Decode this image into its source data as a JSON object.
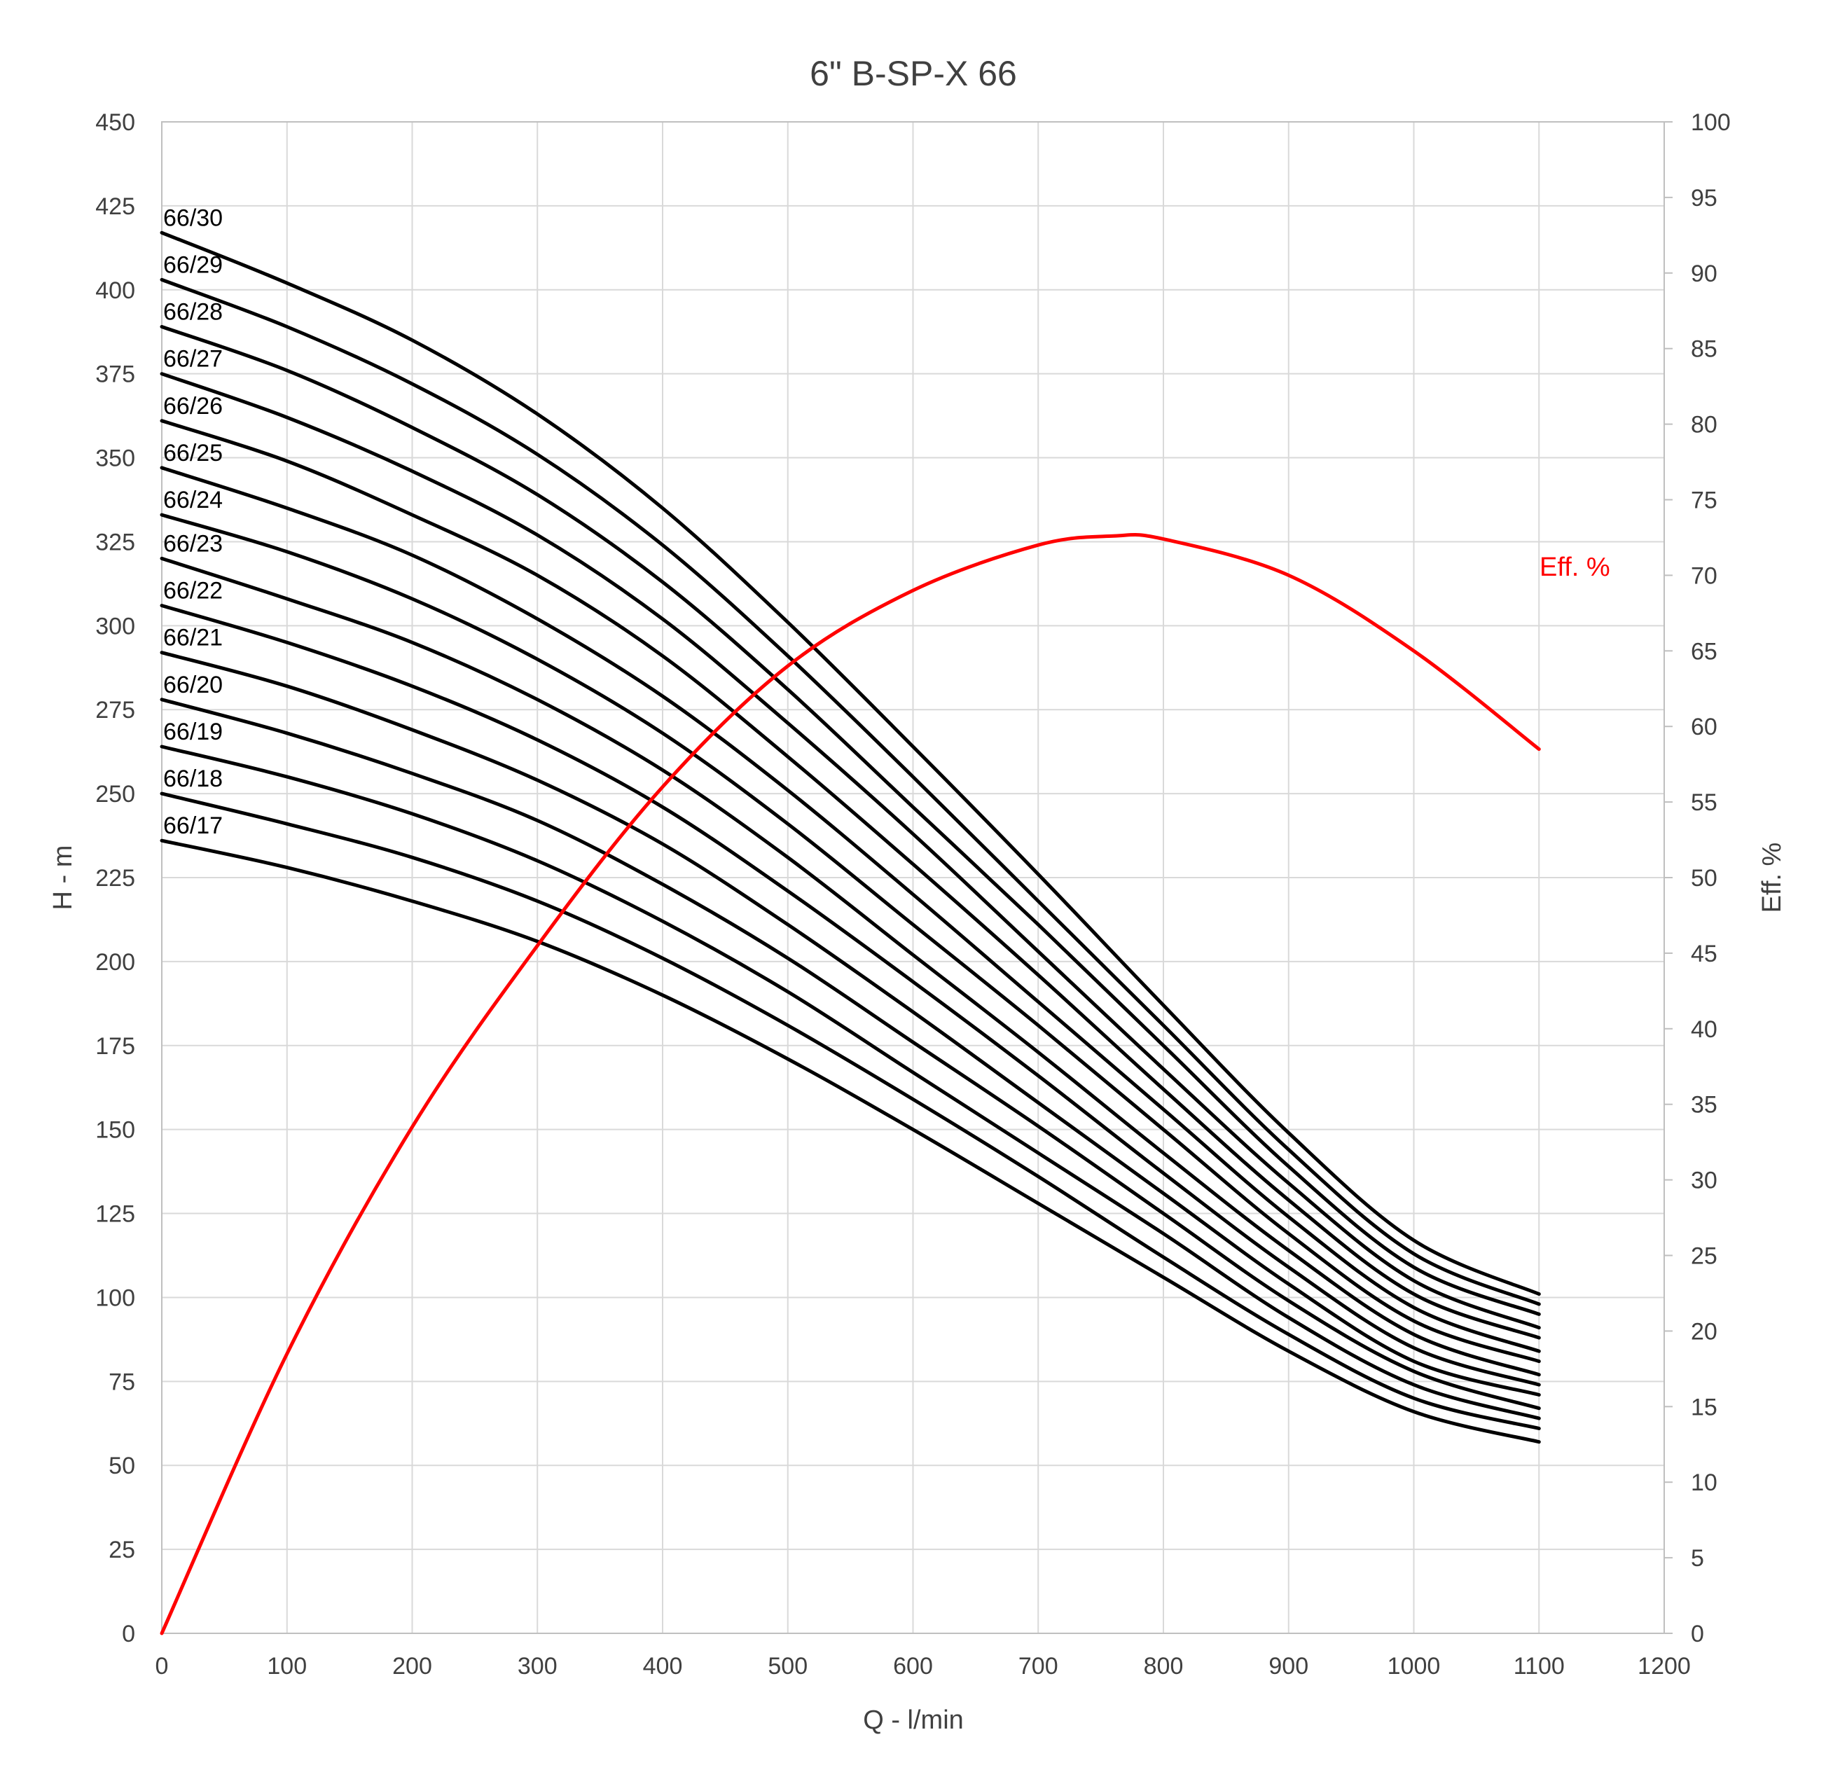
{
  "chart_data": {
    "type": "line",
    "title": "6\" B-SP-X 66",
    "xlabel": "Q - l/min",
    "ylabel": "H - m",
    "y2label": "Eff. %",
    "xlim": [
      0,
      1200
    ],
    "ylim": [
      0,
      450
    ],
    "y2lim": [
      0,
      100
    ],
    "x_ticks": [
      "0",
      "100",
      "200",
      "300",
      "400",
      "500",
      "600",
      "700",
      "800",
      "900",
      "1000",
      "1100",
      "1200"
    ],
    "y_ticks": [
      "0",
      "25",
      "50",
      "75",
      "100",
      "125",
      "150",
      "175",
      "200",
      "225",
      "250",
      "275",
      "300",
      "325",
      "350",
      "375",
      "400",
      "425",
      "450"
    ],
    "y2_ticks": [
      "0",
      "5",
      "10",
      "15",
      "20",
      "25",
      "30",
      "35",
      "40",
      "45",
      "50",
      "55",
      "60",
      "65",
      "70",
      "75",
      "80",
      "85",
      "90",
      "95",
      "100"
    ],
    "grid": true,
    "x": [
      0,
      100,
      200,
      300,
      400,
      500,
      600,
      700,
      800,
      900,
      1000,
      1100
    ],
    "head_series": [
      {
        "name": "66/30",
        "values": [
          417,
          402,
          385,
          363,
          335,
          301,
          264,
          226,
          187,
          149,
          117,
          101
        ]
      },
      {
        "name": "66/29",
        "values": [
          403,
          389,
          372,
          351,
          324,
          291,
          255,
          218,
          181,
          144,
          113,
          98
        ]
      },
      {
        "name": "66/28",
        "values": [
          389,
          376,
          359,
          339,
          313,
          281,
          246,
          211,
          175,
          139,
          109,
          95
        ]
      },
      {
        "name": "66/27",
        "values": [
          375,
          362,
          346,
          327,
          302,
          271,
          238,
          203,
          168,
          134,
          105,
          91
        ]
      },
      {
        "name": "66/26",
        "values": [
          361,
          349,
          333,
          315,
          291,
          261,
          229,
          196,
          162,
          129,
          101,
          88
        ]
      },
      {
        "name": "66/25",
        "values": [
          347,
          335,
          321,
          302,
          279,
          251,
          220,
          188,
          156,
          124,
          97,
          84
        ]
      },
      {
        "name": "66/24",
        "values": [
          333,
          322,
          308,
          290,
          268,
          241,
          211,
          181,
          150,
          119,
          93,
          81
        ]
      },
      {
        "name": "66/23",
        "values": [
          320,
          308,
          295,
          278,
          257,
          231,
          202,
          173,
          143,
          114,
          89,
          77
        ]
      },
      {
        "name": "66/22",
        "values": [
          306,
          295,
          282,
          266,
          246,
          221,
          194,
          166,
          137,
          109,
          85,
          74
        ]
      },
      {
        "name": "66/21",
        "values": [
          292,
          282,
          269,
          254,
          235,
          211,
          185,
          158,
          131,
          104,
          81,
          71
        ]
      },
      {
        "name": "66/20",
        "values": [
          278,
          268,
          256,
          242,
          223,
          201,
          176,
          151,
          125,
          99,
          78,
          67
        ]
      },
      {
        "name": "66/19",
        "values": [
          264,
          255,
          244,
          230,
          212,
          191,
          167,
          143,
          119,
          94,
          74,
          64
        ]
      },
      {
        "name": "66/18",
        "values": [
          250,
          241,
          231,
          218,
          201,
          181,
          159,
          136,
          112,
          89,
          70,
          61
        ]
      },
      {
        "name": "66/17",
        "values": [
          236,
          228,
          218,
          206,
          190,
          171,
          150,
          128,
          106,
          84,
          66,
          57
        ]
      }
    ],
    "efficiency_series": {
      "name": "Eff. %",
      "color": "#ff0000",
      "x": [
        0,
        100,
        200,
        300,
        400,
        500,
        600,
        700,
        760,
        800,
        900,
        1000,
        1100
      ],
      "values": [
        0,
        18.5,
        33.5,
        45.5,
        56,
        64,
        69,
        72,
        72.6,
        72.4,
        70,
        65,
        58.5
      ]
    },
    "head_color": "#000000"
  }
}
